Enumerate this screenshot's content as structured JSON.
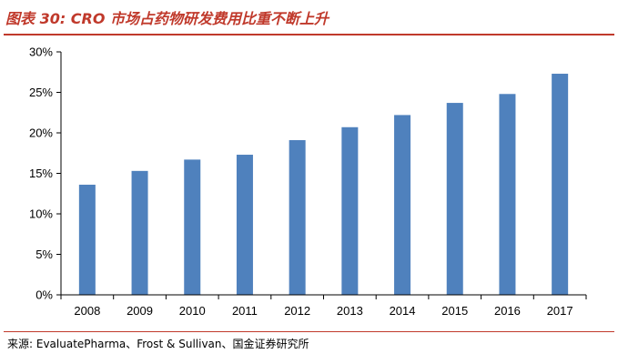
{
  "figure": {
    "title": "图表 30:   CRO 市场占药物研发费用比重不断上升",
    "source": "来源:  EvaluatePharma、Frost & Sullivan、国金证券研究所"
  },
  "colors": {
    "bar": "#4f81bd",
    "accent": "#c0392b",
    "axis": "#000000"
  },
  "chart_data": {
    "type": "bar",
    "title": "CRO 市场占药物研发费用比重不断上升",
    "xlabel": "",
    "ylabel": "",
    "categories": [
      "2008",
      "2009",
      "2010",
      "2011",
      "2012",
      "2013",
      "2014",
      "2015",
      "2016",
      "2017"
    ],
    "values": [
      13.6,
      15.3,
      16.7,
      17.3,
      19.1,
      20.7,
      22.2,
      23.7,
      24.8,
      27.3
    ],
    "ylim": [
      0,
      30
    ],
    "yticks": [
      0,
      5,
      10,
      15,
      20,
      25,
      30
    ],
    "ytick_labels": [
      "0%",
      "5%",
      "10%",
      "15%",
      "20%",
      "25%",
      "30%"
    ],
    "grid": false,
    "legend": "none"
  }
}
